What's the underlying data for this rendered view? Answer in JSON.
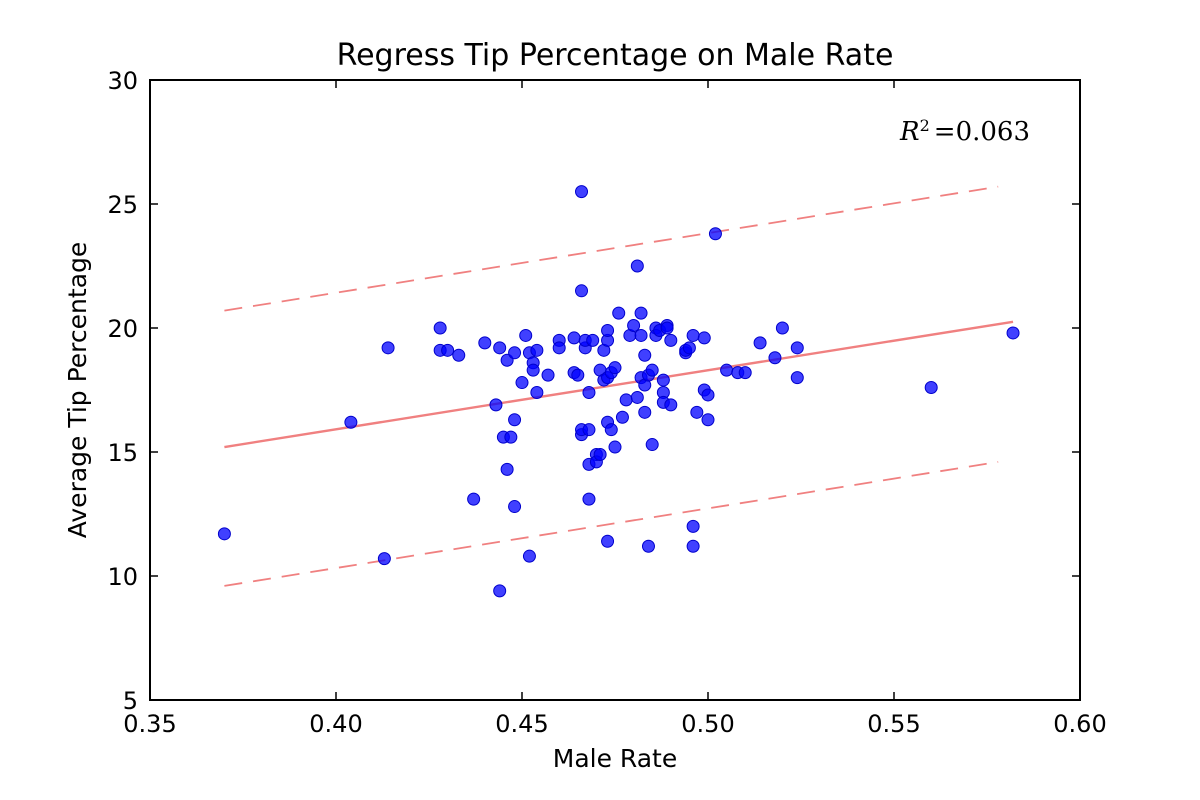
{
  "chart_data": {
    "type": "scatter",
    "title": "Regress Tip Percentage on Male Rate",
    "xlabel": "Male Rate",
    "ylabel": "Average Tip Percentage",
    "xlim": [
      0.35,
      0.6
    ],
    "ylim": [
      5,
      30
    ],
    "xticks": [
      "0.35",
      "0.40",
      "0.45",
      "0.50",
      "0.55",
      "0.60"
    ],
    "yticks": [
      "5",
      "10",
      "15",
      "20",
      "25",
      "30"
    ],
    "grid": false,
    "annotation": {
      "label": "R²",
      "value": "=0.063"
    },
    "colors": {
      "points": "#0000ff",
      "fit": "#f08080",
      "band": "#f08080"
    },
    "fit_line": {
      "x": [
        0.37,
        0.582
      ],
      "y": [
        15.2,
        20.25
      ]
    },
    "upper_band": {
      "x": [
        0.37,
        0.578
      ],
      "y": [
        20.7,
        25.7
      ]
    },
    "lower_band": {
      "x": [
        0.37,
        0.578
      ],
      "y": [
        9.6,
        14.6
      ]
    },
    "points": [
      [
        0.37,
        11.7
      ],
      [
        0.404,
        16.2
      ],
      [
        0.413,
        10.7
      ],
      [
        0.414,
        19.2
      ],
      [
        0.428,
        20.0
      ],
      [
        0.428,
        19.1
      ],
      [
        0.43,
        19.1
      ],
      [
        0.433,
        18.9
      ],
      [
        0.437,
        13.1
      ],
      [
        0.44,
        19.4
      ],
      [
        0.443,
        16.9
      ],
      [
        0.444,
        9.4
      ],
      [
        0.444,
        19.2
      ],
      [
        0.445,
        15.6
      ],
      [
        0.446,
        14.3
      ],
      [
        0.446,
        18.7
      ],
      [
        0.447,
        15.6
      ],
      [
        0.448,
        16.3
      ],
      [
        0.448,
        12.8
      ],
      [
        0.448,
        19.0
      ],
      [
        0.45,
        17.8
      ],
      [
        0.451,
        19.7
      ],
      [
        0.452,
        19.0
      ],
      [
        0.452,
        10.8
      ],
      [
        0.453,
        18.6
      ],
      [
        0.453,
        18.3
      ],
      [
        0.454,
        19.1
      ],
      [
        0.454,
        17.4
      ],
      [
        0.457,
        18.1
      ],
      [
        0.46,
        19.5
      ],
      [
        0.46,
        19.2
      ],
      [
        0.464,
        19.6
      ],
      [
        0.464,
        18.2
      ],
      [
        0.465,
        18.1
      ],
      [
        0.466,
        25.5
      ],
      [
        0.466,
        15.7
      ],
      [
        0.466,
        15.9
      ],
      [
        0.466,
        21.5
      ],
      [
        0.467,
        19.2
      ],
      [
        0.467,
        19.5
      ],
      [
        0.468,
        17.4
      ],
      [
        0.468,
        15.9
      ],
      [
        0.468,
        14.5
      ],
      [
        0.468,
        13.1
      ],
      [
        0.469,
        19.5
      ],
      [
        0.47,
        14.9
      ],
      [
        0.47,
        14.6
      ],
      [
        0.471,
        18.3
      ],
      [
        0.471,
        14.9
      ],
      [
        0.472,
        19.1
      ],
      [
        0.472,
        17.9
      ],
      [
        0.473,
        19.5
      ],
      [
        0.473,
        19.9
      ],
      [
        0.473,
        18.0
      ],
      [
        0.473,
        16.2
      ],
      [
        0.473,
        11.4
      ],
      [
        0.474,
        18.2
      ],
      [
        0.474,
        15.9
      ],
      [
        0.475,
        18.4
      ],
      [
        0.475,
        15.2
      ],
      [
        0.476,
        20.6
      ],
      [
        0.477,
        16.4
      ],
      [
        0.478,
        17.1
      ],
      [
        0.479,
        19.7
      ],
      [
        0.48,
        20.1
      ],
      [
        0.481,
        17.2
      ],
      [
        0.481,
        22.5
      ],
      [
        0.482,
        18.0
      ],
      [
        0.482,
        20.6
      ],
      [
        0.482,
        19.7
      ],
      [
        0.483,
        17.7
      ],
      [
        0.483,
        16.6
      ],
      [
        0.483,
        18.9
      ],
      [
        0.484,
        11.2
      ],
      [
        0.484,
        18.1
      ],
      [
        0.485,
        15.3
      ],
      [
        0.485,
        18.3
      ],
      [
        0.486,
        20.0
      ],
      [
        0.486,
        19.7
      ],
      [
        0.487,
        19.9
      ],
      [
        0.488,
        17.4
      ],
      [
        0.488,
        17.9
      ],
      [
        0.488,
        17.0
      ],
      [
        0.489,
        20.1
      ],
      [
        0.489,
        20.0
      ],
      [
        0.49,
        16.9
      ],
      [
        0.49,
        19.5
      ],
      [
        0.494,
        19.0
      ],
      [
        0.494,
        19.1
      ],
      [
        0.495,
        19.2
      ],
      [
        0.496,
        11.2
      ],
      [
        0.496,
        19.7
      ],
      [
        0.496,
        12.0
      ],
      [
        0.497,
        16.6
      ],
      [
        0.499,
        17.5
      ],
      [
        0.499,
        19.6
      ],
      [
        0.5,
        17.3
      ],
      [
        0.5,
        16.3
      ],
      [
        0.502,
        23.8
      ],
      [
        0.505,
        18.3
      ],
      [
        0.508,
        18.2
      ],
      [
        0.51,
        18.2
      ],
      [
        0.514,
        19.4
      ],
      [
        0.518,
        18.8
      ],
      [
        0.52,
        20.0
      ],
      [
        0.524,
        19.2
      ],
      [
        0.524,
        18.0
      ],
      [
        0.56,
        17.6
      ],
      [
        0.582,
        19.8
      ]
    ]
  }
}
